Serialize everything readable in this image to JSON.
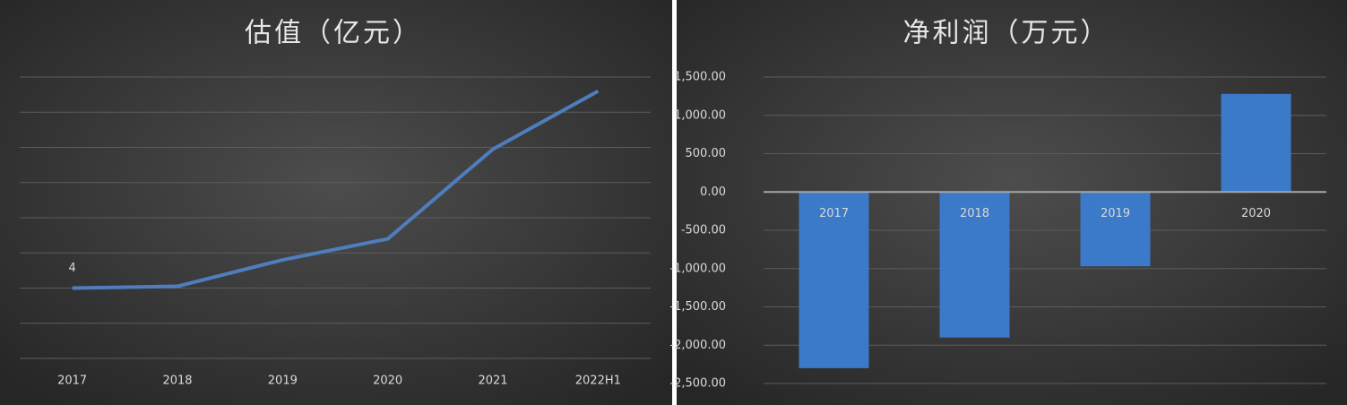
{
  "chart_data": [
    {
      "type": "line",
      "title": "估值（亿元）",
      "categories": [
        "2017",
        "2018",
        "2019",
        "2020",
        "2021",
        "2022H1"
      ],
      "values": [
        4,
        4.1,
        5.6,
        6.8,
        11.9,
        15.2
      ],
      "value_labels": [
        "4",
        null,
        null,
        null,
        null,
        null
      ],
      "color": "#4f7dbd",
      "ylim": [
        0,
        16
      ],
      "yticks": [
        0,
        2,
        4,
        6,
        8,
        10,
        12,
        14,
        16
      ],
      "grid": true
    },
    {
      "type": "bar",
      "title": "净利润（万元）",
      "categories": [
        "2017",
        "2018",
        "2019",
        "2020"
      ],
      "values": [
        -2300,
        -1900,
        -970,
        1280
      ],
      "color": "#3b79c9",
      "ylim": [
        -2500,
        1500
      ],
      "yticks": [
        {
          "value": 1500,
          "label": "1,500.00"
        },
        {
          "value": 1000,
          "label": "1,000.00"
        },
        {
          "value": 500,
          "label": "500.00"
        },
        {
          "value": 0,
          "label": "0.00"
        },
        {
          "value": -500,
          "label": "-500.00"
        },
        {
          "value": -1000,
          "label": "-1,000.00"
        },
        {
          "value": -1500,
          "label": "-1,500.00"
        },
        {
          "value": -2000,
          "label": "-2,000.00"
        },
        {
          "value": -2500,
          "label": "-2,500.00"
        }
      ],
      "grid": true
    }
  ]
}
